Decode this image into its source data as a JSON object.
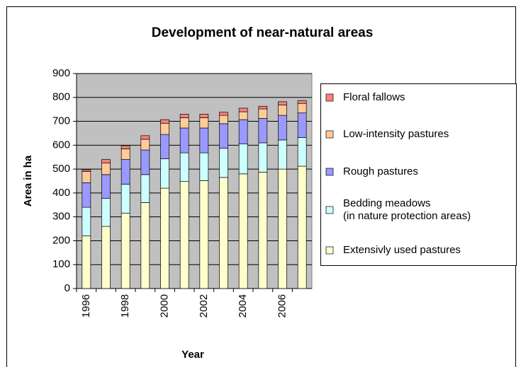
{
  "chart_data": {
    "type": "stacked_bar",
    "title": "Development of near-natural areas",
    "x_label": "Year",
    "y_label": "Area in ha",
    "categories": [
      "1996",
      null,
      "1998",
      null,
      "2000",
      null,
      "2002",
      null,
      "2004",
      null,
      "2006",
      null
    ],
    "series": [
      {
        "name": "Extensivly used pastures",
        "color": "#ffffcc",
        "values": [
          220,
          260,
          315,
          360,
          420,
          448,
          452,
          465,
          480,
          487,
          500,
          512
        ]
      },
      {
        "name": "Bedding meadows\n(in nature protection areas)",
        "color": "#ccffff",
        "values": [
          120,
          117,
          122,
          117,
          123,
          120,
          116,
          122,
          125,
          123,
          122,
          120
        ]
      },
      {
        "name": "Rough pastures",
        "color": "#9999ff",
        "values": [
          103,
          100,
          103,
          103,
          102,
          104,
          104,
          103,
          102,
          102,
          103,
          103
        ]
      },
      {
        "name": "Low-intensity pastures",
        "color": "#ffcc99",
        "values": [
          47,
          48,
          45,
          45,
          47,
          43,
          43,
          35,
          33,
          40,
          43,
          40
        ]
      },
      {
        "name": "Floral fallows",
        "color": "#ff8080",
        "values": [
          7,
          15,
          13,
          15,
          15,
          15,
          15,
          13,
          15,
          11,
          14,
          12
        ]
      }
    ],
    "ylim": [
      0,
      900
    ],
    "yticks": [
      0,
      100,
      200,
      300,
      400,
      500,
      600,
      700,
      800,
      900
    ],
    "grid": true,
    "legend": "right",
    "plot_background": "#c0c0c0"
  }
}
